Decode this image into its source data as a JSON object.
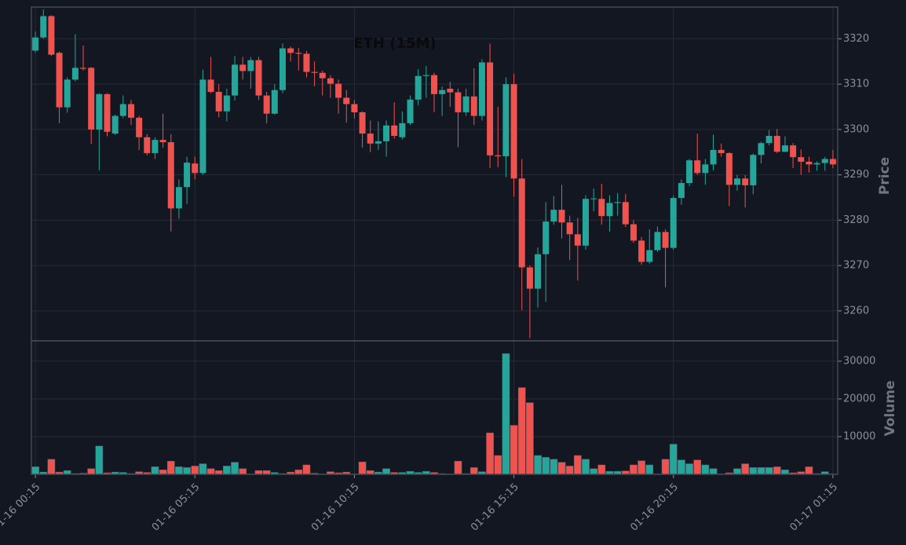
{
  "chart_data": [
    {
      "type": "candlestick",
      "title": "ETH (15M)",
      "ylabel": "Price",
      "up_color": "#26a69a",
      "down_color": "#ef5350",
      "grid": true,
      "xlim": [
        -0.5,
        100.6
      ],
      "ylim": [
        3253.4,
        3327
      ],
      "yticks": [
        3260,
        3270,
        3280,
        3290,
        3300,
        3310,
        3320
      ],
      "open": [
        3317.4,
        3320.3,
        3325,
        3316.9,
        3304.9,
        3311,
        3313.6,
        3313.6,
        3300,
        3307.8,
        3299.1,
        3303,
        3305.6,
        3302.6,
        3298.3,
        3294.8,
        3297.7,
        3297.2,
        3282.6,
        3287.3,
        3292.5,
        3290.4,
        3311,
        3308.3,
        3304,
        3307.5,
        3314.3,
        3312.9,
        3315.3,
        3307.5,
        3303.5,
        3308.7,
        3317.9,
        3316.9,
        3316.7,
        3312.7,
        3312.5,
        3311.3,
        3310.1,
        3307,
        3305.6,
        3303.8,
        3299.1,
        3296.9,
        3297.4,
        3300.9,
        3298.3,
        3301.4,
        3306.6,
        3311.8,
        3312,
        3307.8,
        3309,
        3308.2,
        3303.8,
        3307.3,
        3303,
        3314.8,
        3294.3,
        3294.1,
        3310,
        3289.2,
        3269.6,
        3264.9,
        3272.5,
        3279.7,
        3282.3,
        3279.5,
        3276.9,
        3274.4,
        3284.7,
        3284.7,
        3280.9,
        3283.8,
        3284,
        3279.1,
        3275.5,
        3270.8,
        3273.4,
        3277.4,
        3273.9,
        3284.9,
        3288.2,
        3293.2,
        3290.4,
        3292.3,
        3295.5,
        3294.8,
        3287.8,
        3289.2,
        3287.7,
        3294.4,
        3297,
        3298.6,
        3295.1,
        3296.5,
        3293.9,
        3292.9,
        3292.3,
        3292.6,
        3293.5
      ],
      "high": [
        3321.6,
        3326.5,
        3325.2,
        3317.2,
        3311.5,
        3321,
        3318.5,
        3313.8,
        3308,
        3308,
        3303.3,
        3307.5,
        3306.5,
        3303,
        3299,
        3298.3,
        3303.5,
        3299,
        3289,
        3294,
        3294,
        3313.2,
        3316,
        3310,
        3309,
        3316.2,
        3316,
        3316,
        3316,
        3308.3,
        3310,
        3319,
        3318.3,
        3318,
        3317.3,
        3315,
        3313,
        3312,
        3311,
        3308.7,
        3306.5,
        3304,
        3302,
        3301.8,
        3302,
        3306,
        3304,
        3307.5,
        3313.3,
        3314,
        3312.5,
        3309.5,
        3310.5,
        3309,
        3309,
        3313.5,
        3315.5,
        3318.9,
        3305,
        3311.5,
        3312.3,
        3293.5,
        3270,
        3274,
        3284,
        3285.3,
        3287.8,
        3281,
        3280.5,
        3285.5,
        3287,
        3288,
        3285.5,
        3286,
        3285.8,
        3280,
        3276.3,
        3278,
        3278.6,
        3278,
        3285.4,
        3289,
        3293.5,
        3299.1,
        3293.5,
        3298.9,
        3296.9,
        3295,
        3290,
        3290,
        3294.7,
        3297.3,
        3299.9,
        3300.1,
        3298.5,
        3297,
        3295.6,
        3294,
        3293,
        3294,
        3295.5
      ],
      "low": [
        3317,
        3320,
        3316.2,
        3301.4,
        3303.7,
        3310.6,
        3313,
        3296.8,
        3291,
        3298.5,
        3298.8,
        3302.5,
        3301,
        3295.5,
        3294.3,
        3293.5,
        3296,
        3277.5,
        3280.3,
        3283.6,
        3289,
        3290,
        3308,
        3302.7,
        3301.8,
        3306.4,
        3311,
        3309,
        3306.5,
        3301.4,
        3303.3,
        3308,
        3315,
        3313,
        3311.5,
        3309.5,
        3307.5,
        3307,
        3303.5,
        3301.5,
        3302.4,
        3296,
        3295,
        3295.5,
        3294,
        3298,
        3297.8,
        3301,
        3305.3,
        3307,
        3303.8,
        3303,
        3305,
        3296.1,
        3303,
        3301,
        3302,
        3291.5,
        3291.7,
        3289.5,
        3285.2,
        3260.2,
        3254,
        3260.7,
        3262,
        3279,
        3276,
        3271.2,
        3266.7,
        3273.5,
        3282,
        3279,
        3277.5,
        3281,
        3278.5,
        3275,
        3270.2,
        3270.4,
        3273,
        3265.2,
        3273.5,
        3283.4,
        3287.5,
        3290,
        3287.8,
        3291,
        3294,
        3283.1,
        3286.5,
        3282.8,
        3285.7,
        3292.5,
        3296.5,
        3294.8,
        3295,
        3291.5,
        3290,
        3290.5,
        3290.9,
        3290.9,
        3291.5
      ],
      "close": [
        3320.3,
        3325,
        3316.5,
        3304.9,
        3311,
        3313.6,
        3313.4,
        3300,
        3307.8,
        3299.5,
        3303,
        3305.6,
        3302.6,
        3298.3,
        3294.8,
        3297.7,
        3297.2,
        3282.6,
        3287.3,
        3292.7,
        3290.4,
        3311,
        3308.3,
        3304,
        3307.5,
        3314.3,
        3312.9,
        3315.3,
        3307.5,
        3303.5,
        3308.7,
        3317.9,
        3316.9,
        3316.7,
        3312.7,
        3312.5,
        3311.3,
        3310.1,
        3307,
        3305.6,
        3303.8,
        3299.1,
        3296.9,
        3297.4,
        3300.9,
        3298.6,
        3301.4,
        3306.6,
        3311.8,
        3312,
        3307.8,
        3308.7,
        3308.2,
        3303.8,
        3307.3,
        3303,
        3314.8,
        3294.3,
        3294.1,
        3310,
        3289.2,
        3269.6,
        3264.9,
        3272.5,
        3279.7,
        3282.3,
        3279.5,
        3276.9,
        3274.4,
        3284.7,
        3284.8,
        3280.9,
        3283.8,
        3284,
        3279.1,
        3275.5,
        3270.8,
        3273.4,
        3277.4,
        3273.9,
        3284.9,
        3288.2,
        3293.2,
        3290.4,
        3292.3,
        3295.5,
        3294.8,
        3287.8,
        3289.2,
        3287.7,
        3294.4,
        3297,
        3298.6,
        3295.1,
        3296.5,
        3293.9,
        3292.9,
        3292.3,
        3292.6,
        3293.5,
        3292.3
      ]
    },
    {
      "type": "bar",
      "ylabel": "Volume",
      "grid": true,
      "xlim": [
        -0.5,
        100.6
      ],
      "ylim": [
        0,
        35400
      ],
      "yticks": [
        10000,
        20000,
        30000
      ],
      "xticks": [
        {
          "value": 0,
          "label": "01-16 00:15"
        },
        {
          "value": 20,
          "label": "01-16 05:15"
        },
        {
          "value": 40,
          "label": "01-16 10:15"
        },
        {
          "value": 60,
          "label": "01-16 15:15"
        },
        {
          "value": 80,
          "label": "01-16 20:15"
        },
        {
          "value": 100,
          "label": "01-17 01:15"
        }
      ],
      "values": [
        2000,
        600,
        4000,
        600,
        1000,
        200,
        300,
        1500,
        7500,
        400,
        600,
        500,
        200,
        700,
        500,
        2000,
        1200,
        3500,
        2000,
        1800,
        2200,
        2800,
        1500,
        1000,
        2200,
        3200,
        1500,
        100,
        1000,
        1000,
        500,
        200,
        600,
        1200,
        2500,
        300,
        100,
        700,
        400,
        600,
        100,
        3300,
        1000,
        600,
        1500,
        500,
        500,
        800,
        500,
        800,
        500,
        200,
        100,
        3500,
        200,
        1800,
        700,
        11000,
        5000,
        32000,
        13000,
        23000,
        19000,
        5000,
        4500,
        4000,
        3200,
        2200,
        5000,
        4000,
        1500,
        2500,
        800,
        800,
        900,
        2500,
        3600,
        2500,
        100,
        4000,
        8000,
        3800,
        2800,
        3800,
        2500,
        1500,
        100,
        400,
        1500,
        2800,
        1800,
        1800,
        1800,
        2000,
        1200,
        400,
        700,
        2000,
        200,
        700,
        100
      ]
    }
  ]
}
